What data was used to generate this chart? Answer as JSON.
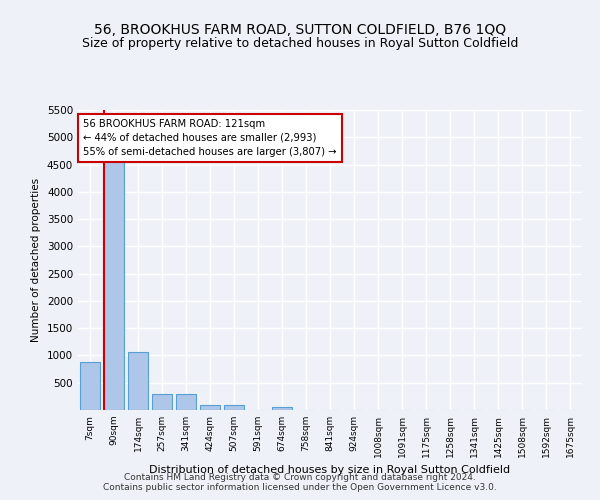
{
  "title": "56, BROOKHUS FARM ROAD, SUTTON COLDFIELD, B76 1QQ",
  "subtitle": "Size of property relative to detached houses in Royal Sutton Coldfield",
  "xlabel": "Distribution of detached houses by size in Royal Sutton Coldfield",
  "ylabel": "Number of detached properties",
  "footnote1": "Contains HM Land Registry data © Crown copyright and database right 2024.",
  "footnote2": "Contains public sector information licensed under the Open Government Licence v3.0.",
  "bar_labels": [
    "7sqm",
    "90sqm",
    "174sqm",
    "257sqm",
    "341sqm",
    "424sqm",
    "507sqm",
    "591sqm",
    "674sqm",
    "758sqm",
    "841sqm",
    "924sqm",
    "1008sqm",
    "1091sqm",
    "1175sqm",
    "1258sqm",
    "1341sqm",
    "1425sqm",
    "1508sqm",
    "1592sqm",
    "1675sqm"
  ],
  "bar_values": [
    880,
    4560,
    1060,
    290,
    290,
    90,
    85,
    0,
    55,
    0,
    0,
    0,
    0,
    0,
    0,
    0,
    0,
    0,
    0,
    0,
    0
  ],
  "bar_color": "#aec6e8",
  "bar_edge_color": "#5a9fd4",
  "vline_x": 0.575,
  "annotation_line1": "56 BROOKHUS FARM ROAD: 121sqm",
  "annotation_line2": "← 44% of detached houses are smaller (2,993)",
  "annotation_line3": "55% of semi-detached houses are larger (3,807) →",
  "annotation_box_color": "#ffffff",
  "annotation_box_edge": "#cc0000",
  "vline_color": "#cc0000",
  "ylim": [
    0,
    5500
  ],
  "yticks": [
    0,
    500,
    1000,
    1500,
    2000,
    2500,
    3000,
    3500,
    4000,
    4500,
    5000,
    5500
  ],
  "bg_color": "#eef2f8",
  "grid_color": "#ffffff",
  "title_fontsize": 10,
  "subtitle_fontsize": 9,
  "footnote_fontsize": 6.5
}
